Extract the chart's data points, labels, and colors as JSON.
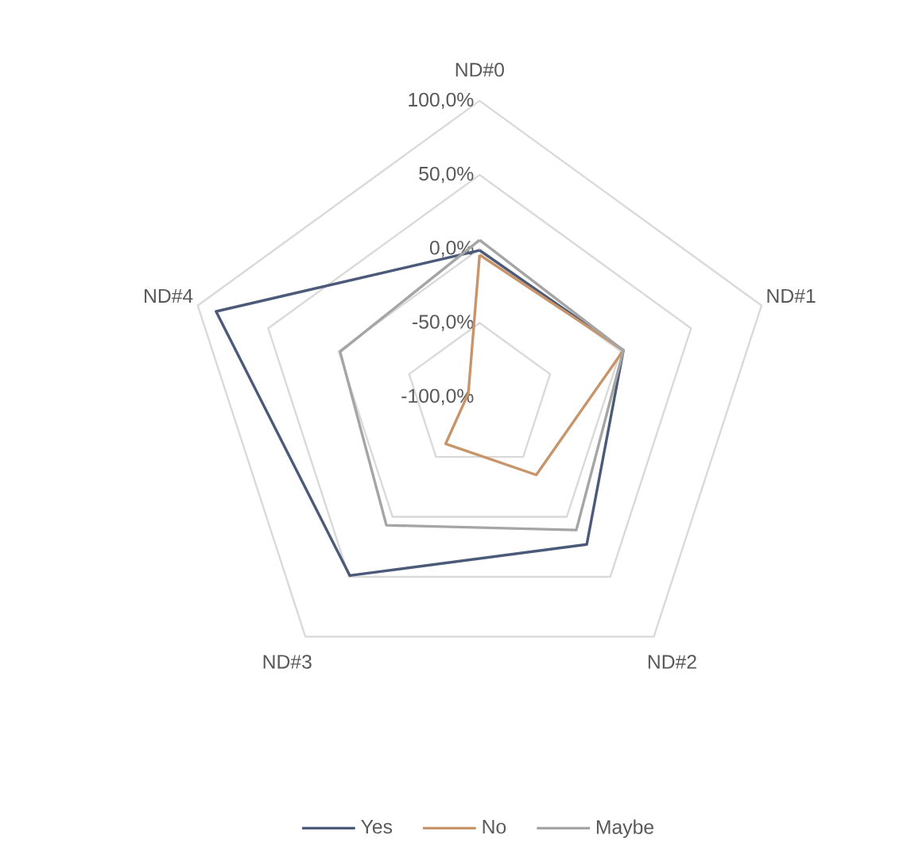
{
  "chart_data": {
    "type": "radar",
    "categories": [
      "ND#0",
      "ND#1",
      "ND#2",
      "ND#3",
      "ND#4"
    ],
    "series": [
      {
        "name": "Yes",
        "color": "#4a5a78",
        "values": [
          -1,
          2,
          23,
          49,
          87
        ]
      },
      {
        "name": "No",
        "color": "#c8956a",
        "values": [
          -4,
          2,
          -35,
          -61,
          -92
        ]
      },
      {
        "name": "Maybe",
        "color": "#a5a5a5",
        "values": [
          6,
          2,
          11,
          7,
          -1
        ]
      }
    ],
    "ylim": [
      -100,
      100
    ],
    "yticks": [
      {
        "value": -100,
        "label": "-100,0%"
      },
      {
        "value": -50,
        "label": "-50,0%"
      },
      {
        "value": 0,
        "label": "0,0%"
      },
      {
        "value": 50,
        "label": "50,0%"
      },
      {
        "value": 100,
        "label": "100,0%"
      }
    ],
    "grid": true,
    "legend": "bottom",
    "line_style": "solid",
    "marker": "none"
  }
}
